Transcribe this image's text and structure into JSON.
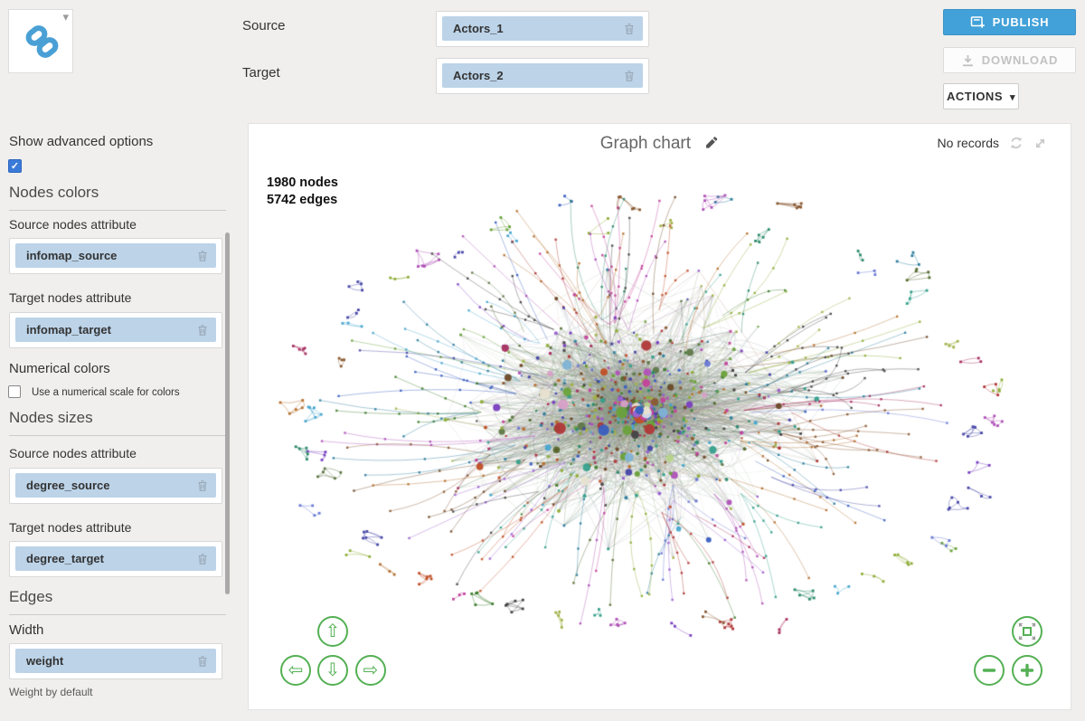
{
  "header": {
    "source_label": "Source",
    "target_label": "Target",
    "source_value": "Actors_1",
    "target_value": "Actors_2",
    "publish_label": "PUBLISH",
    "download_label": "DOWNLOAD",
    "actions_label": "ACTIONS"
  },
  "sidebar": {
    "show_advanced_label": "Show advanced options",
    "nodes_colors_title": "Nodes colors",
    "colors_source_attr_label": "Source nodes attribute",
    "colors_source_attr_value": "infomap_source",
    "colors_target_attr_label": "Target nodes attribute",
    "colors_target_attr_value": "infomap_target",
    "numerical_colors_label": "Numerical colors",
    "numerical_scale_label": "Use a numerical scale for colors",
    "nodes_sizes_title": "Nodes sizes",
    "sizes_source_attr_label": "Source nodes attribute",
    "sizes_source_attr_value": "degree_source",
    "sizes_target_attr_label": "Target nodes attribute",
    "sizes_target_attr_value": "degree_target",
    "edges_title": "Edges",
    "width_label": "Width",
    "width_value": "weight",
    "width_hint": "Weight by default"
  },
  "chart": {
    "title": "Graph chart",
    "status": "No records",
    "nodes_count": "1980 nodes",
    "edges_count": "5742 edges"
  },
  "icons": {
    "pan_up": "⇧",
    "pan_down": "⇩",
    "pan_left": "⇦",
    "pan_right": "⇨",
    "caret_down": "▾",
    "logo_caret": "▾",
    "checkmark": "✓"
  },
  "colors": {
    "accent_blue": "#42a1d8",
    "pill_blue": "#bcd3e8",
    "checkbox_blue": "#3a7ad9",
    "nav_green": "#54b054",
    "logo_blue": "#4aa0d5"
  },
  "graph": {
    "palette": [
      "#3f7d2e",
      "#6ba23c",
      "#8fae3a",
      "#a3b34a",
      "#556b2f",
      "#2e8b6e",
      "#36a08c",
      "#2f7f9e",
      "#4aa7cf",
      "#3a5fc0",
      "#6a79d4",
      "#4747a8",
      "#7a3fc0",
      "#9a5fd0",
      "#b052b8",
      "#c2439b",
      "#a83060",
      "#b03838",
      "#c05028",
      "#b5702f",
      "#8a5a33",
      "#6e4a28",
      "#444444",
      "#607848"
    ],
    "edge_palette": [
      "#7a9a6a",
      "#8aa87a",
      "#6b8a5a",
      "#9aa88a",
      "#7a8a9a",
      "#a88a9a",
      "#9a7aa8",
      "#8a9aa8",
      "#a89a7a",
      "#b08a7a",
      "#7aa89a",
      "#8f8f8f",
      "#86a070",
      "#79957f"
    ],
    "hub_palette": [
      "#e8e2d0",
      "#cfe0ee",
      "#7fb3d5",
      "#b8d48a",
      "#d8a0c8",
      "#6ba23c",
      "#9a5fd0",
      "#b03838",
      "#3a5fc0",
      "#36a08c",
      "#c2439b",
      "#c05028"
    ]
  }
}
